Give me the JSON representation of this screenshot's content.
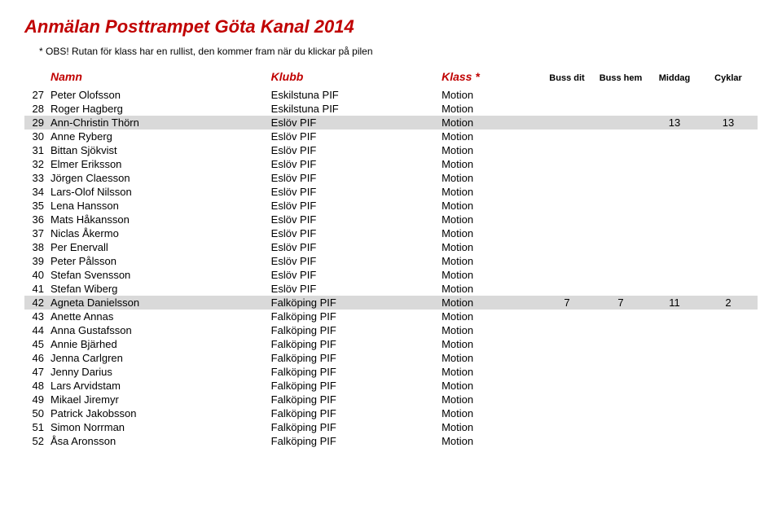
{
  "title": "Anmälan Posttrampet Göta Kanal 2014",
  "obs": "* OBS! Rutan för klass har en rullist, den kommer fram när du klickar på pilen",
  "headers": {
    "namn": "Namn",
    "klubb": "Klubb",
    "klass": "Klass *",
    "bussdit": "Buss dit",
    "busshem": "Buss hem",
    "middag": "Middag",
    "cyklar": "Cyklar"
  },
  "rows": [
    {
      "n": "27",
      "namn": "Peter Olofsson",
      "klubb": "Eskilstuna PIF",
      "klass": "Motion",
      "bd": "",
      "bh": "",
      "m": "",
      "c": "",
      "hl": false
    },
    {
      "n": "28",
      "namn": "Roger Hagberg",
      "klubb": "Eskilstuna PIF",
      "klass": "Motion",
      "bd": "",
      "bh": "",
      "m": "",
      "c": "",
      "hl": false
    },
    {
      "n": "29",
      "namn": "Ann-Christin Thörn",
      "klubb": "Eslöv PIF",
      "klass": "Motion",
      "bd": "",
      "bh": "",
      "m": "13",
      "c": "13",
      "hl": true
    },
    {
      "n": "30",
      "namn": "Anne Ryberg",
      "klubb": "Eslöv PIF",
      "klass": "Motion",
      "bd": "",
      "bh": "",
      "m": "",
      "c": "",
      "hl": false
    },
    {
      "n": "31",
      "namn": "Bittan Sjökvist",
      "klubb": "Eslöv PIF",
      "klass": "Motion",
      "bd": "",
      "bh": "",
      "m": "",
      "c": "",
      "hl": false
    },
    {
      "n": "32",
      "namn": "Elmer Eriksson",
      "klubb": "Eslöv PIF",
      "klass": "Motion",
      "bd": "",
      "bh": "",
      "m": "",
      "c": "",
      "hl": false
    },
    {
      "n": "33",
      "namn": "Jörgen Claesson",
      "klubb": "Eslöv PIF",
      "klass": "Motion",
      "bd": "",
      "bh": "",
      "m": "",
      "c": "",
      "hl": false
    },
    {
      "n": "34",
      "namn": "Lars-Olof Nilsson",
      "klubb": "Eslöv PIF",
      "klass": "Motion",
      "bd": "",
      "bh": "",
      "m": "",
      "c": "",
      "hl": false
    },
    {
      "n": "35",
      "namn": "Lena Hansson",
      "klubb": "Eslöv PIF",
      "klass": "Motion",
      "bd": "",
      "bh": "",
      "m": "",
      "c": "",
      "hl": false
    },
    {
      "n": "36",
      "namn": "Mats Håkansson",
      "klubb": "Eslöv PIF",
      "klass": "Motion",
      "bd": "",
      "bh": "",
      "m": "",
      "c": "",
      "hl": false
    },
    {
      "n": "37",
      "namn": "Niclas Åkermo",
      "klubb": "Eslöv PIF",
      "klass": "Motion",
      "bd": "",
      "bh": "",
      "m": "",
      "c": "",
      "hl": false
    },
    {
      "n": "38",
      "namn": "Per Enervall",
      "klubb": "Eslöv PIF",
      "klass": "Motion",
      "bd": "",
      "bh": "",
      "m": "",
      "c": "",
      "hl": false
    },
    {
      "n": "39",
      "namn": "Peter Pålsson",
      "klubb": "Eslöv PIF",
      "klass": "Motion",
      "bd": "",
      "bh": "",
      "m": "",
      "c": "",
      "hl": false
    },
    {
      "n": "40",
      "namn": "Stefan Svensson",
      "klubb": "Eslöv PIF",
      "klass": "Motion",
      "bd": "",
      "bh": "",
      "m": "",
      "c": "",
      "hl": false
    },
    {
      "n": "41",
      "namn": "Stefan Wiberg",
      "klubb": "Eslöv PIF",
      "klass": "Motion",
      "bd": "",
      "bh": "",
      "m": "",
      "c": "",
      "hl": false
    },
    {
      "n": "42",
      "namn": "Agneta Danielsson",
      "klubb": "Falköping PIF",
      "klass": "Motion",
      "bd": "7",
      "bh": "7",
      "m": "11",
      "c": "2",
      "hl": true
    },
    {
      "n": "43",
      "namn": "Anette Annas",
      "klubb": "Falköping PIF",
      "klass": "Motion",
      "bd": "",
      "bh": "",
      "m": "",
      "c": "",
      "hl": false
    },
    {
      "n": "44",
      "namn": "Anna Gustafsson",
      "klubb": "Falköping PIF",
      "klass": "Motion",
      "bd": "",
      "bh": "",
      "m": "",
      "c": "",
      "hl": false
    },
    {
      "n": "45",
      "namn": "Annie Bjärhed",
      "klubb": "Falköping PIF",
      "klass": "Motion",
      "bd": "",
      "bh": "",
      "m": "",
      "c": "",
      "hl": false
    },
    {
      "n": "46",
      "namn": "Jenna Carlgren",
      "klubb": "Falköping PIF",
      "klass": "Motion",
      "bd": "",
      "bh": "",
      "m": "",
      "c": "",
      "hl": false
    },
    {
      "n": "47",
      "namn": "Jenny Darius",
      "klubb": "Falköping PIF",
      "klass": "Motion",
      "bd": "",
      "bh": "",
      "m": "",
      "c": "",
      "hl": false
    },
    {
      "n": "48",
      "namn": "Lars Arvidstam",
      "klubb": "Falköping PIF",
      "klass": "Motion",
      "bd": "",
      "bh": "",
      "m": "",
      "c": "",
      "hl": false
    },
    {
      "n": "49",
      "namn": "Mikael Jiremyr",
      "klubb": "Falköping PIF",
      "klass": "Motion",
      "bd": "",
      "bh": "",
      "m": "",
      "c": "",
      "hl": false
    },
    {
      "n": "50",
      "namn": "Patrick Jakobsson",
      "klubb": "Falköping PIF",
      "klass": "Motion",
      "bd": "",
      "bh": "",
      "m": "",
      "c": "",
      "hl": false
    },
    {
      "n": "51",
      "namn": "Simon Norrman",
      "klubb": "Falköping PIF",
      "klass": "Motion",
      "bd": "",
      "bh": "",
      "m": "",
      "c": "",
      "hl": false
    },
    {
      "n": "52",
      "namn": "Åsa Aronsson",
      "klubb": "Falköping PIF",
      "klass": "Motion",
      "bd": "",
      "bh": "",
      "m": "",
      "c": "",
      "hl": false
    }
  ]
}
